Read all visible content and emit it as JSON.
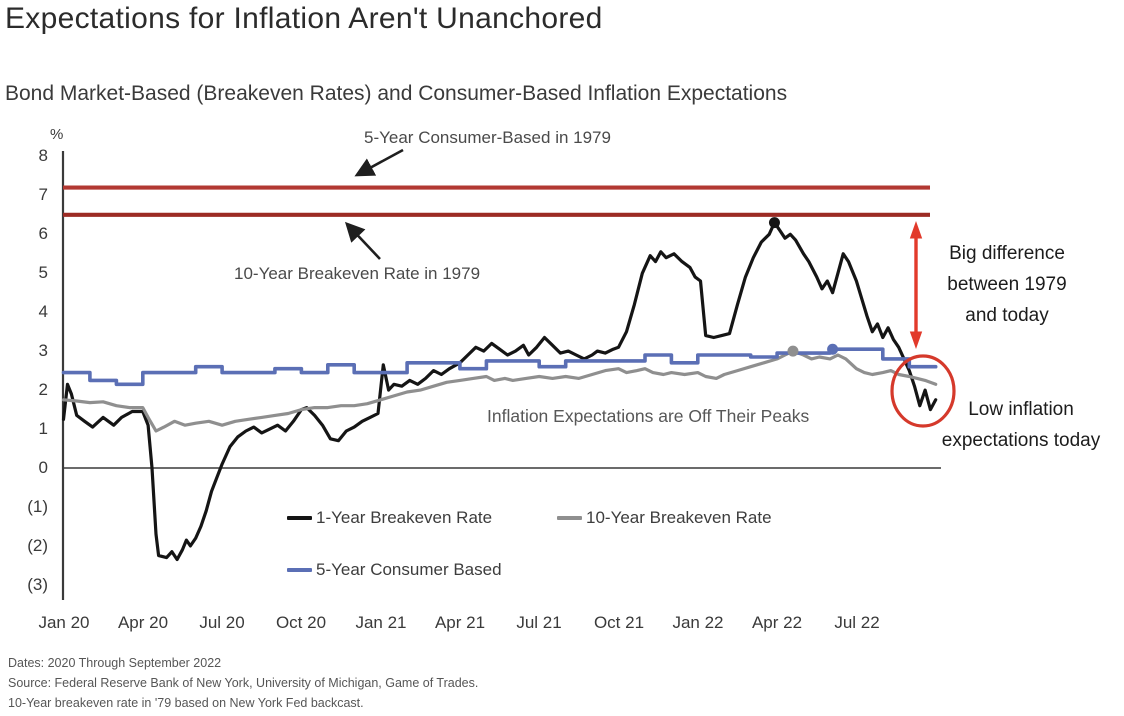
{
  "title": "Expectations for Inflation Aren't Unanchored",
  "subtitle": "Bond Market-Based (Breakeven Rates) and Consumer-Based Inflation Expectations",
  "y_axis": {
    "unit_label": "%",
    "ticks": [
      {
        "label": "8",
        "value": 8
      },
      {
        "label": "7",
        "value": 7
      },
      {
        "label": "6",
        "value": 6
      },
      {
        "label": "5",
        "value": 5
      },
      {
        "label": "4",
        "value": 4
      },
      {
        "label": "3",
        "value": 3
      },
      {
        "label": "2",
        "value": 2
      },
      {
        "label": "1",
        "value": 1
      },
      {
        "label": "0",
        "value": 0
      },
      {
        "label": "(1)",
        "value": -1
      },
      {
        "label": "(2)",
        "value": -2
      },
      {
        "label": "(3)",
        "value": -3
      }
    ]
  },
  "x_axis": {
    "labels": [
      "Jan 20",
      "Apr 20",
      "Jul 20",
      "Oct 20",
      "Jan 21",
      "Apr 21",
      "Jul 21",
      "Oct 21",
      "Jan 22",
      "Apr 22",
      "Jul 22"
    ]
  },
  "annotations": {
    "top_line_label": "5-Year Consumer-Based in 1979",
    "second_line_label": "10-Year Breakeven Rate in 1979",
    "off_peaks": "Inflation Expectations are Off Their Peaks",
    "big_difference_lines": [
      "Big difference",
      "between 1979",
      "and today"
    ],
    "low_inflation_lines": [
      "Low inflation",
      "expectations today"
    ]
  },
  "legend": {
    "items": [
      {
        "label": "1-Year Breakeven Rate",
        "color": "#151515"
      },
      {
        "label": "10-Year Breakeven Rate",
        "color": "#8f8f8f"
      },
      {
        "label": "5-Year Consumer Based",
        "color": "#5b6fb5"
      }
    ]
  },
  "footer": {
    "lines": [
      "Dates: 2020 Through September 2022",
      "Source: Federal Reserve Bank of New York, University of Michigan, Game of Trades.",
      "10-Year breakeven rate in '79 based on New York Fed backcast."
    ]
  },
  "colors": {
    "series_1yr": "#151515",
    "series_10yr": "#8f8f8f",
    "series_5yr_consumer": "#5b6fb5",
    "ref_line_top": "#b23832",
    "ref_line_bottom": "#9c2b24",
    "annotation_red": "#e23a2b",
    "axis": "#3a3a3a"
  },
  "chart_data": {
    "type": "line",
    "title": "Expectations for Inflation Aren't Unanchored",
    "subtitle": "Bond Market-Based (Breakeven Rates) and Consumer-Based Inflation Expectations",
    "ylabel": "%",
    "ylim": [
      -3,
      8
    ],
    "x_unit": "months since Jan 2020 (0 = Jan 2020, 33 = Oct 2022)",
    "x_tick_labels": [
      "Jan 20",
      "Apr 20",
      "Jul 20",
      "Oct 20",
      "Jan 21",
      "Apr 21",
      "Jul 21",
      "Oct 21",
      "Jan 22",
      "Apr 22",
      "Jul 22"
    ],
    "grid": false,
    "legend_position": "bottom",
    "reference_lines": [
      {
        "label": "5-Year Consumer-Based in 1979",
        "value": 7.2,
        "color": "#b23832"
      },
      {
        "label": "10-Year Breakeven Rate in 1979",
        "value": 6.5,
        "color": "#9c2b24"
      }
    ],
    "series": [
      {
        "name": "1-Year Breakeven Rate",
        "color": "#151515",
        "style": "line",
        "points": [
          [
            0,
            1.25
          ],
          [
            0.15,
            2.15
          ],
          [
            0.3,
            1.9
          ],
          [
            0.5,
            1.35
          ],
          [
            0.8,
            1.2
          ],
          [
            1.1,
            1.05
          ],
          [
            1.5,
            1.3
          ],
          [
            1.9,
            1.1
          ],
          [
            2.2,
            1.3
          ],
          [
            2.6,
            1.45
          ],
          [
            3.0,
            1.45
          ],
          [
            3.2,
            1.1
          ],
          [
            3.35,
            0.0
          ],
          [
            3.5,
            -1.7
          ],
          [
            3.6,
            -2.25
          ],
          [
            3.9,
            -2.3
          ],
          [
            4.1,
            -2.15
          ],
          [
            4.3,
            -2.35
          ],
          [
            4.5,
            -2.1
          ],
          [
            4.65,
            -1.85
          ],
          [
            4.8,
            -2.0
          ],
          [
            5.0,
            -1.8
          ],
          [
            5.2,
            -1.5
          ],
          [
            5.4,
            -1.1
          ],
          [
            5.6,
            -0.6
          ],
          [
            5.8,
            -0.25
          ],
          [
            6.0,
            0.1
          ],
          [
            6.3,
            0.55
          ],
          [
            6.6,
            0.8
          ],
          [
            6.9,
            0.95
          ],
          [
            7.2,
            1.05
          ],
          [
            7.5,
            0.9
          ],
          [
            7.8,
            1.0
          ],
          [
            8.1,
            1.1
          ],
          [
            8.4,
            0.95
          ],
          [
            8.7,
            1.2
          ],
          [
            9.0,
            1.5
          ],
          [
            9.2,
            1.55
          ],
          [
            9.5,
            1.35
          ],
          [
            9.8,
            1.1
          ],
          [
            10.1,
            0.75
          ],
          [
            10.4,
            0.7
          ],
          [
            10.7,
            0.95
          ],
          [
            11.0,
            1.05
          ],
          [
            11.3,
            1.2
          ],
          [
            11.6,
            1.3
          ],
          [
            11.9,
            1.4
          ],
          [
            12.1,
            2.65
          ],
          [
            12.3,
            2.0
          ],
          [
            12.5,
            2.15
          ],
          [
            12.8,
            2.1
          ],
          [
            13.1,
            2.25
          ],
          [
            13.4,
            2.15
          ],
          [
            13.7,
            2.3
          ],
          [
            14.0,
            2.5
          ],
          [
            14.3,
            2.4
          ],
          [
            14.6,
            2.55
          ],
          [
            15.0,
            2.7
          ],
          [
            15.3,
            2.9
          ],
          [
            15.6,
            3.1
          ],
          [
            15.9,
            3.0
          ],
          [
            16.2,
            3.2
          ],
          [
            16.5,
            3.05
          ],
          [
            16.8,
            2.9
          ],
          [
            17.1,
            3.0
          ],
          [
            17.4,
            3.15
          ],
          [
            17.6,
            2.9
          ],
          [
            17.9,
            3.1
          ],
          [
            18.2,
            3.35
          ],
          [
            18.5,
            3.15
          ],
          [
            18.8,
            2.95
          ],
          [
            19.1,
            3.0
          ],
          [
            19.4,
            2.9
          ],
          [
            19.7,
            2.8
          ],
          [
            20.0,
            2.9
          ],
          [
            20.2,
            3.0
          ],
          [
            20.5,
            2.95
          ],
          [
            20.8,
            3.05
          ],
          [
            21.0,
            3.1
          ],
          [
            21.3,
            3.5
          ],
          [
            21.6,
            4.2
          ],
          [
            21.9,
            5.0
          ],
          [
            22.2,
            5.45
          ],
          [
            22.4,
            5.3
          ],
          [
            22.6,
            5.55
          ],
          [
            22.8,
            5.4
          ],
          [
            23.1,
            5.5
          ],
          [
            23.4,
            5.3
          ],
          [
            23.7,
            5.15
          ],
          [
            23.9,
            4.9
          ],
          [
            24.1,
            4.8
          ],
          [
            24.3,
            3.4
          ],
          [
            24.6,
            3.35
          ],
          [
            24.9,
            3.4
          ],
          [
            25.2,
            3.45
          ],
          [
            25.5,
            4.2
          ],
          [
            25.8,
            4.9
          ],
          [
            26.1,
            5.4
          ],
          [
            26.4,
            5.8
          ],
          [
            26.7,
            6.0
          ],
          [
            26.9,
            6.3
          ],
          [
            27.1,
            6.1
          ],
          [
            27.3,
            5.9
          ],
          [
            27.5,
            6.0
          ],
          [
            27.7,
            5.85
          ],
          [
            28.0,
            5.5
          ],
          [
            28.2,
            5.3
          ],
          [
            28.5,
            4.9
          ],
          [
            28.7,
            4.6
          ],
          [
            28.9,
            4.8
          ],
          [
            29.1,
            4.5
          ],
          [
            29.3,
            5.0
          ],
          [
            29.5,
            5.5
          ],
          [
            29.7,
            5.3
          ],
          [
            30.0,
            4.8
          ],
          [
            30.2,
            4.35
          ],
          [
            30.4,
            3.9
          ],
          [
            30.6,
            3.5
          ],
          [
            30.8,
            3.7
          ],
          [
            31.0,
            3.35
          ],
          [
            31.2,
            3.6
          ],
          [
            31.4,
            3.3
          ],
          [
            31.6,
            3.1
          ],
          [
            31.8,
            2.8
          ],
          [
            32.0,
            2.5
          ],
          [
            32.2,
            2.1
          ],
          [
            32.4,
            1.6
          ],
          [
            32.6,
            2.0
          ],
          [
            32.8,
            1.5
          ],
          [
            33.0,
            1.75
          ]
        ]
      },
      {
        "name": "10-Year Breakeven Rate",
        "color": "#8f8f8f",
        "style": "line",
        "points": [
          [
            0,
            1.75
          ],
          [
            0.5,
            1.72
          ],
          [
            1,
            1.68
          ],
          [
            1.5,
            1.7
          ],
          [
            2,
            1.6
          ],
          [
            2.5,
            1.55
          ],
          [
            3,
            1.55
          ],
          [
            3.2,
            1.3
          ],
          [
            3.5,
            0.95
          ],
          [
            3.8,
            1.05
          ],
          [
            4.2,
            1.2
          ],
          [
            4.6,
            1.1
          ],
          [
            5,
            1.15
          ],
          [
            5.5,
            1.2
          ],
          [
            6,
            1.1
          ],
          [
            6.5,
            1.2
          ],
          [
            7,
            1.25
          ],
          [
            7.5,
            1.3
          ],
          [
            8,
            1.35
          ],
          [
            8.5,
            1.4
          ],
          [
            9,
            1.5
          ],
          [
            9.5,
            1.55
          ],
          [
            10,
            1.55
          ],
          [
            10.5,
            1.6
          ],
          [
            11,
            1.6
          ],
          [
            11.5,
            1.65
          ],
          [
            12,
            1.75
          ],
          [
            12.5,
            1.85
          ],
          [
            13,
            1.95
          ],
          [
            13.5,
            2.0
          ],
          [
            14,
            2.1
          ],
          [
            14.5,
            2.2
          ],
          [
            15,
            2.25
          ],
          [
            15.5,
            2.3
          ],
          [
            16,
            2.35
          ],
          [
            16.3,
            2.25
          ],
          [
            16.7,
            2.3
          ],
          [
            17,
            2.25
          ],
          [
            17.5,
            2.3
          ],
          [
            18,
            2.35
          ],
          [
            18.5,
            2.3
          ],
          [
            19,
            2.35
          ],
          [
            19.5,
            2.3
          ],
          [
            20,
            2.4
          ],
          [
            20.5,
            2.5
          ],
          [
            21,
            2.55
          ],
          [
            21.3,
            2.45
          ],
          [
            21.7,
            2.5
          ],
          [
            22,
            2.55
          ],
          [
            22.3,
            2.45
          ],
          [
            22.7,
            2.4
          ],
          [
            23,
            2.45
          ],
          [
            23.5,
            2.4
          ],
          [
            24,
            2.45
          ],
          [
            24.3,
            2.35
          ],
          [
            24.7,
            2.3
          ],
          [
            25,
            2.4
          ],
          [
            25.5,
            2.5
          ],
          [
            26,
            2.6
          ],
          [
            26.5,
            2.7
          ],
          [
            27,
            2.8
          ],
          [
            27.3,
            2.9
          ],
          [
            27.6,
            3.0
          ],
          [
            28,
            2.9
          ],
          [
            28.3,
            2.8
          ],
          [
            28.6,
            2.85
          ],
          [
            29,
            2.8
          ],
          [
            29.3,
            2.9
          ],
          [
            29.6,
            2.8
          ],
          [
            30,
            2.55
          ],
          [
            30.3,
            2.45
          ],
          [
            30.6,
            2.4
          ],
          [
            31,
            2.45
          ],
          [
            31.3,
            2.5
          ],
          [
            31.6,
            2.4
          ],
          [
            32,
            2.35
          ],
          [
            32.3,
            2.3
          ],
          [
            32.6,
            2.25
          ],
          [
            33,
            2.15
          ]
        ]
      },
      {
        "name": "5-Year Consumer Based",
        "color": "#5b6fb5",
        "style": "step",
        "monthly_values": [
          2.45,
          2.25,
          2.15,
          2.45,
          2.45,
          2.6,
          2.45,
          2.45,
          2.55,
          2.45,
          2.65,
          2.45,
          2.45,
          2.7,
          2.7,
          2.55,
          2.75,
          2.75,
          2.6,
          2.75,
          2.75,
          2.75,
          2.9,
          2.7,
          2.9,
          2.9,
          2.85,
          2.95,
          2.95,
          3.05,
          3.05,
          2.8,
          2.6
        ]
      }
    ],
    "peak_markers": [
      {
        "series": "1-Year Breakeven Rate",
        "t": 26.9,
        "value": 6.3,
        "color": "#151515"
      },
      {
        "series": "10-Year Breakeven Rate",
        "t": 27.6,
        "value": 3.0,
        "color": "#8f8f8f"
      },
      {
        "series": "5-Year Consumer Based",
        "t": 29.1,
        "value": 3.05,
        "color": "#5b6fb5"
      }
    ]
  }
}
